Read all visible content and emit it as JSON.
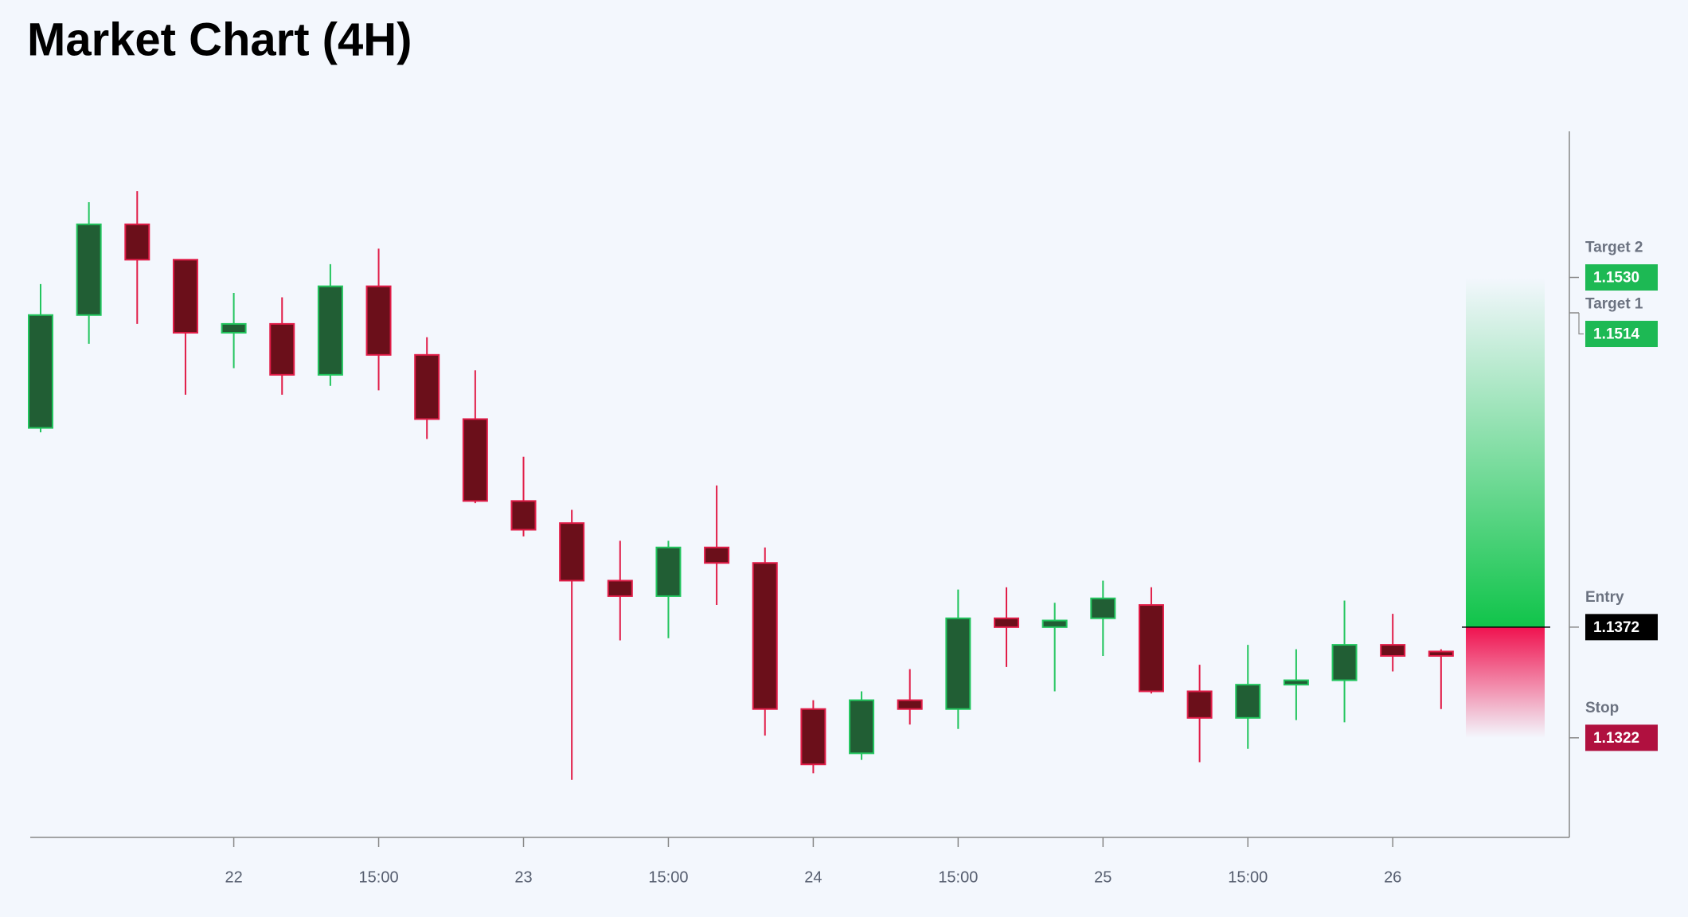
{
  "chart_data": {
    "type": "candlestick",
    "title": "Market Chart (4H)",
    "categories": [
      null,
      null,
      null,
      null,
      "22",
      null,
      null,
      "15:00",
      null,
      null,
      "23",
      null,
      null,
      "15:00",
      null,
      null,
      "24",
      null,
      null,
      "15:00",
      null,
      null,
      "25",
      null,
      null,
      "15:00",
      null,
      null,
      "26",
      null
    ],
    "open": [
      1.1462,
      1.1513,
      1.1554,
      1.1538,
      1.1505,
      1.1509,
      1.1486,
      1.1526,
      1.1495,
      1.1466,
      1.1429,
      1.1419,
      1.1393,
      1.1386,
      1.1408,
      1.1401,
      1.1335,
      1.1315,
      1.1339,
      1.1335,
      1.1376,
      1.1372,
      1.1376,
      1.1382,
      1.1343,
      1.1331,
      1.1346,
      1.1348,
      1.1364,
      1.1361
    ],
    "high": [
      1.1527,
      1.1564,
      1.1569,
      1.1538,
      1.1523,
      1.1521,
      1.1536,
      1.1543,
      1.1503,
      1.1488,
      1.1449,
      1.1425,
      1.1411,
      1.1411,
      1.1436,
      1.1408,
      1.1339,
      1.1343,
      1.1353,
      1.1389,
      1.139,
      1.1383,
      1.1393,
      1.139,
      1.1355,
      1.1364,
      1.1362,
      1.1384,
      1.1378,
      1.1362
    ],
    "low": [
      1.146,
      1.15,
      1.1509,
      1.1477,
      1.1489,
      1.1477,
      1.1481,
      1.1479,
      1.1457,
      1.1428,
      1.1413,
      1.1303,
      1.1366,
      1.1367,
      1.1382,
      1.1323,
      1.1306,
      1.1312,
      1.1328,
      1.1326,
      1.1354,
      1.1343,
      1.1359,
      1.1342,
      1.1311,
      1.1317,
      1.133,
      1.1329,
      1.1352,
      1.1335
    ],
    "close": [
      1.1513,
      1.1554,
      1.1538,
      1.1505,
      1.1509,
      1.1486,
      1.1526,
      1.1495,
      1.1466,
      1.1429,
      1.1416,
      1.1393,
      1.1386,
      1.1408,
      1.1401,
      1.1335,
      1.131,
      1.1339,
      1.1335,
      1.1376,
      1.1372,
      1.1375,
      1.1385,
      1.1343,
      1.1331,
      1.1346,
      1.1348,
      1.1364,
      1.1359,
      1.1359
    ],
    "up_color": "#22c55e",
    "up_fill": "#215e34",
    "down_color": "#e11d48",
    "down_fill": "#6b0f1a",
    "ylim": [
      1.1277,
      1.1596
    ],
    "levels": [
      {
        "name": "Target 2",
        "value": 1.153,
        "value_label": "1.1530",
        "color": "#1db954"
      },
      {
        "name": "Target 1",
        "value": 1.1514,
        "value_label": "1.1514",
        "color": "#1db954"
      },
      {
        "name": "Entry",
        "value": 1.1372,
        "value_label": "1.1372",
        "color": "#000000"
      },
      {
        "name": "Stop",
        "value": 1.1322,
        "value_label": "1.1322",
        "color": "#b0103f"
      }
    ]
  }
}
